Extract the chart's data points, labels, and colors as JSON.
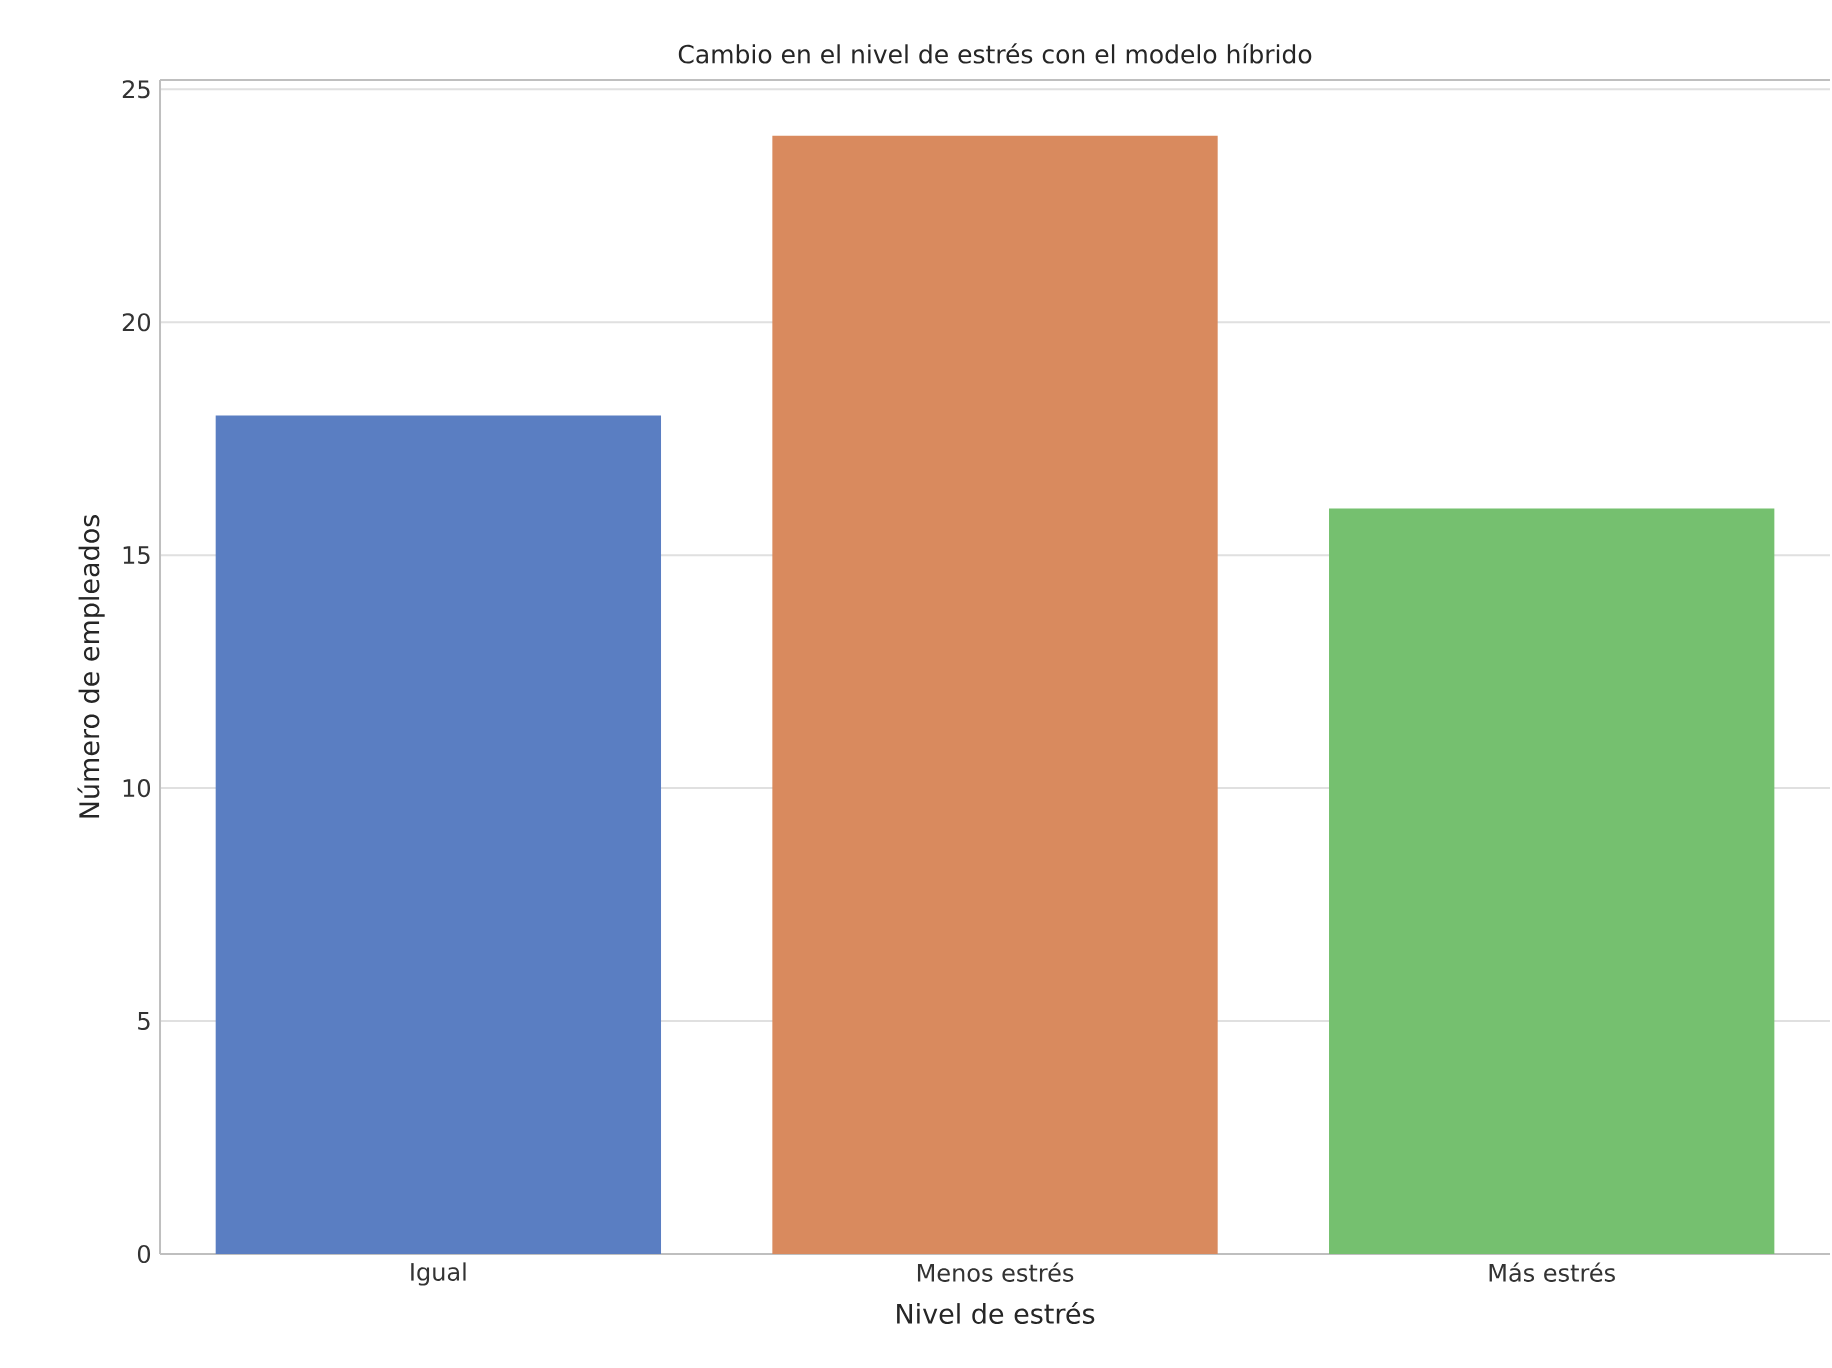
{
  "chart_data": {
    "type": "bar",
    "title": "Cambio en el nivel de estrés con el modelo híbrido",
    "xlabel": "Nivel de estrés",
    "ylabel": "Número de empleados",
    "categories": [
      "Igual",
      "Menos estrés",
      "Más estrés"
    ],
    "values": [
      18,
      24,
      16
    ],
    "colors": [
      "#5a7ec2",
      "#d98a5e",
      "#75c06f"
    ],
    "ylim": [
      0,
      25.2
    ],
    "yticks": [
      0,
      5,
      10,
      15,
      20,
      25
    ],
    "grid": "y"
  }
}
